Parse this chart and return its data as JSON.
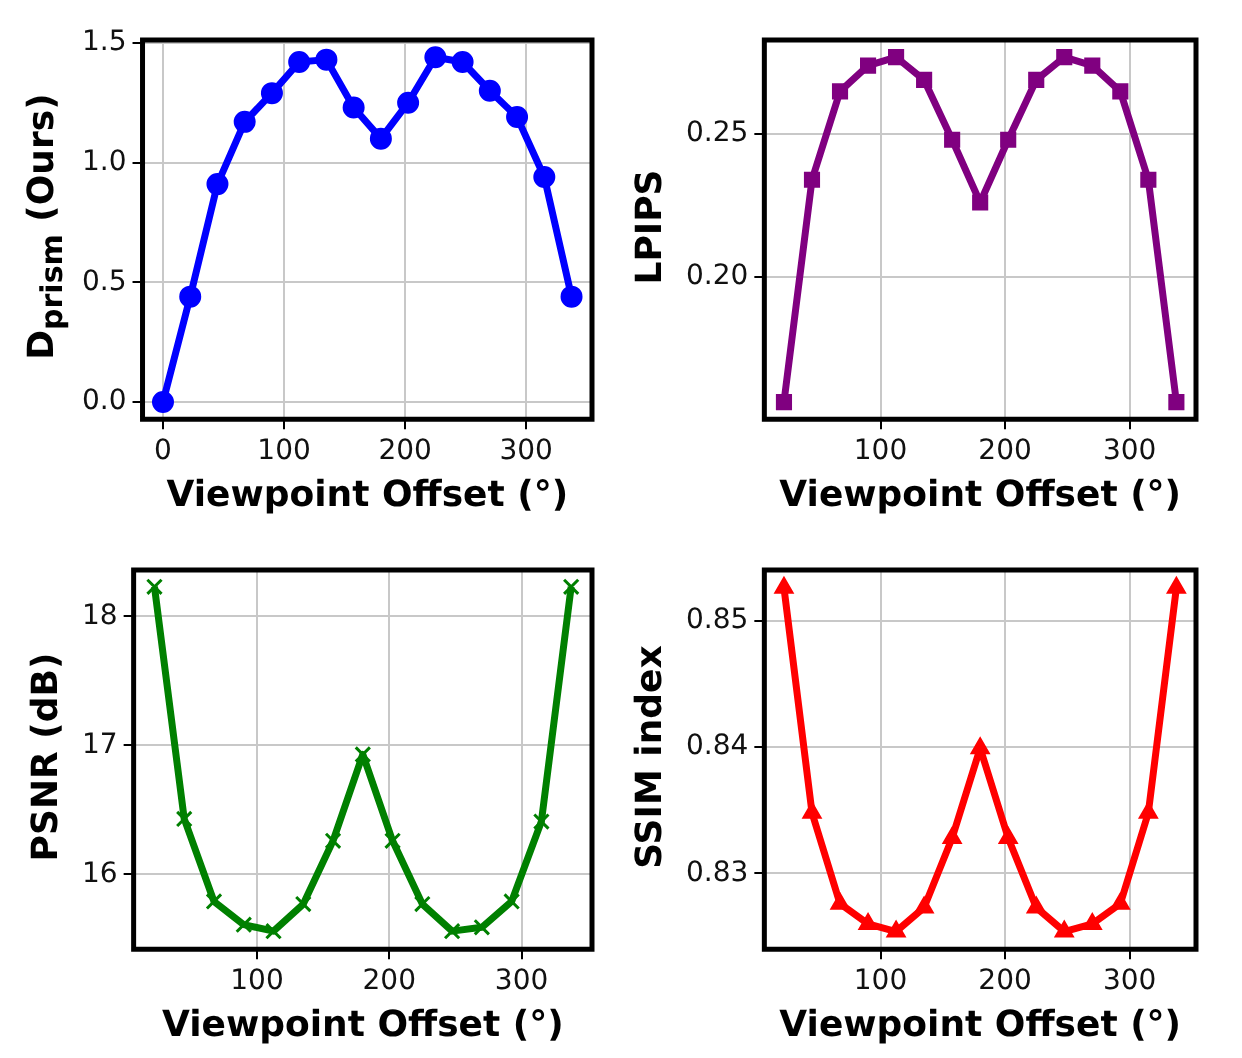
{
  "chart_data": [
    {
      "type": "line",
      "xlabel": "Viewpoint Offset (°)",
      "ylabel": "D$_{prism}$ (Ours)",
      "x": [
        0,
        22.5,
        45,
        67.5,
        90,
        112.5,
        135,
        157.5,
        180,
        202.5,
        225,
        247.5,
        270,
        292.5,
        315,
        337.5
      ],
      "series": [
        {
          "color": "#0000ff",
          "values": [
            0,
            0.44,
            0.91,
            1.17,
            1.29,
            1.42,
            1.43,
            1.23,
            1.1,
            1.25,
            1.44,
            1.42,
            1.3,
            1.19,
            0.94,
            0.44
          ]
        }
      ],
      "marker": "circle",
      "grid": true,
      "xlim": [
        -16.9,
        354.4
      ],
      "ylim": [
        -0.072,
        1.512
      ],
      "xticks": [
        0,
        100,
        200,
        300
      ],
      "yticks": [
        {
          "value": 0,
          "label": "0.0"
        },
        {
          "value": 0.5,
          "label": "0.5"
        },
        {
          "value": 1,
          "label": "1.0"
        },
        {
          "value": 1.5,
          "label": "1.5"
        }
      ]
    },
    {
      "type": "line",
      "xlabel": "Viewpoint Offset (°)",
      "ylabel": "LPIPS",
      "x": [
        22.5,
        45,
        67.5,
        90,
        112.5,
        135,
        157.5,
        180,
        202.5,
        225,
        247.5,
        270,
        292.5,
        315,
        337.5
      ],
      "series": [
        {
          "color": "#800080",
          "values": [
            0.156,
            0.234,
            0.265,
            0.274,
            0.277,
            0.269,
            0.248,
            0.226,
            0.248,
            0.269,
            0.277,
            0.274,
            0.265,
            0.234,
            0.156
          ]
        }
      ],
      "marker": "square",
      "grid": true,
      "xlim": [
        6.75,
        353.25
      ],
      "ylim": [
        0.15,
        0.283
      ],
      "xticks": [
        100,
        200,
        300
      ],
      "yticks": [
        {
          "value": 0.2,
          "label": "0.20"
        },
        0.25
      ]
    },
    {
      "type": "line",
      "xlabel": "Viewpoint Offset (°)",
      "ylabel": "PSNR (dB)",
      "x": [
        22.5,
        45,
        67.5,
        90,
        112.5,
        135,
        157.5,
        180,
        202.5,
        225,
        247.5,
        270,
        292.5,
        315,
        337.5
      ],
      "series": [
        {
          "color": "#008000",
          "values": [
            18.23,
            16.43,
            15.79,
            15.61,
            15.56,
            15.77,
            16.26,
            16.93,
            16.26,
            15.77,
            15.56,
            15.59,
            15.79,
            16.41,
            18.23
          ]
        }
      ],
      "marker": "cross",
      "grid": true,
      "xlim": [
        6.75,
        353.25
      ],
      "ylim": [
        15.42,
        18.36
      ],
      "xticks": [
        100,
        200,
        300
      ],
      "yticks": [
        16,
        17,
        18
      ]
    },
    {
      "type": "line",
      "xlabel": "Viewpoint Offset (°)",
      "ylabel": "SSIM index",
      "x": [
        22.5,
        45,
        67.5,
        90,
        112.5,
        135,
        157.5,
        180,
        202.5,
        225,
        247.5,
        270,
        292.5,
        315,
        337.5
      ],
      "series": [
        {
          "color": "#ff0000",
          "values": [
            0.8526,
            0.8348,
            0.8276,
            0.826,
            0.8254,
            0.8273,
            0.8328,
            0.8399,
            0.8328,
            0.8273,
            0.8254,
            0.826,
            0.8276,
            0.8348,
            0.8526
          ]
        }
      ],
      "marker": "triangle",
      "grid": true,
      "xlim": [
        6.75,
        353.25
      ],
      "ylim": [
        0.824,
        0.854
      ],
      "xticks": [
        100,
        200,
        300
      ],
      "yticks": [
        0.83,
        0.84,
        0.85
      ]
    }
  ]
}
